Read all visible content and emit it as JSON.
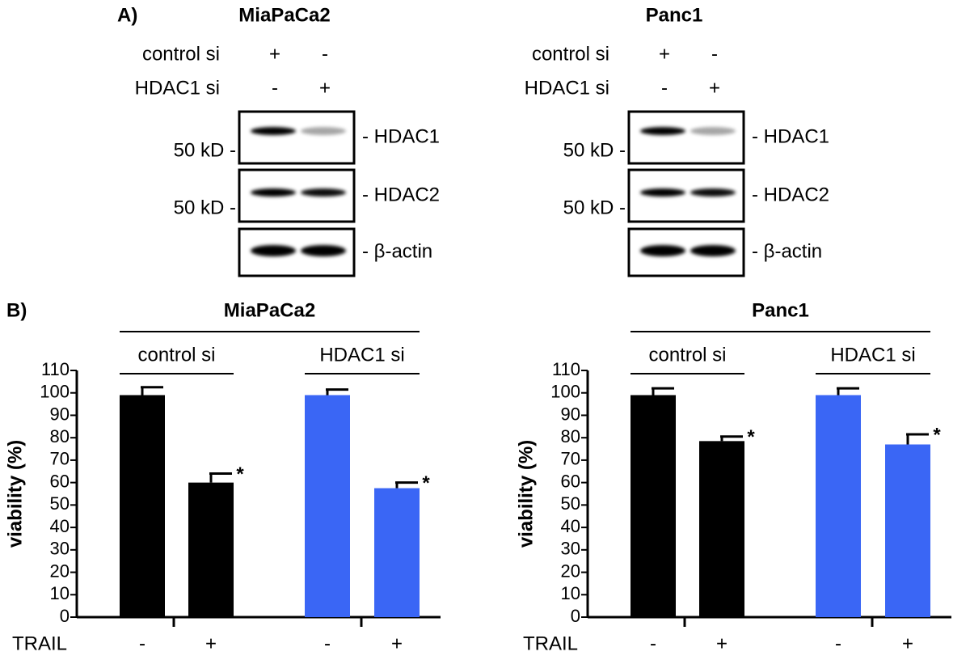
{
  "panel_labels": [
    "A)",
    "B)"
  ],
  "panel_a": {
    "blots": [
      {
        "title": "MiaPaCa2",
        "conditions": [
          {
            "name": "control si",
            "lanes": [
              "+",
              "-"
            ]
          },
          {
            "name": "HDAC1 si",
            "lanes": [
              "-",
              "+"
            ]
          }
        ],
        "bands": [
          "- HDAC1",
          "- HDAC2",
          "- β-actin"
        ],
        "markers": [
          "50 kD -",
          "50 kD -"
        ]
      },
      {
        "title": "Panc1",
        "conditions": [
          {
            "name": "control si",
            "lanes": [
              "+",
              "-"
            ]
          },
          {
            "name": "HDAC1 si",
            "lanes": [
              "-",
              "+"
            ]
          }
        ],
        "bands": [
          "- HDAC1",
          "- HDAC2",
          "- β-actin"
        ],
        "markers": [
          "50 kD -",
          "50 kD -"
        ]
      }
    ]
  },
  "chart_data": [
    {
      "type": "bar",
      "title": "MiaPaCa2",
      "groups": [
        "control si",
        "HDAC1 si"
      ],
      "x_label": "TRAIL",
      "y_label": "viability (%)",
      "categories": [
        "-",
        "+",
        "-",
        "+"
      ],
      "values": [
        99,
        60,
        99,
        57.5
      ],
      "errors": [
        3.5,
        4,
        2.5,
        2.5
      ],
      "colors": [
        "#000000",
        "#000000",
        "#3a66f5",
        "#3a66f5"
      ],
      "markers": [
        null,
        "*",
        null,
        "*"
      ],
      "ylim": [
        0,
        110
      ],
      "yticks": [
        0,
        10,
        20,
        30,
        40,
        50,
        60,
        70,
        80,
        90,
        100,
        110
      ]
    },
    {
      "type": "bar",
      "title": "Panc1",
      "groups": [
        "control si",
        "HDAC1 si"
      ],
      "x_label": "TRAIL",
      "y_label": "viability (%)",
      "categories": [
        "-",
        "+",
        "-",
        "+"
      ],
      "values": [
        99,
        78.5,
        99,
        77
      ],
      "errors": [
        3,
        2,
        3,
        4.5
      ],
      "colors": [
        "#000000",
        "#000000",
        "#3a66f5",
        "#3a66f5"
      ],
      "markers": [
        null,
        "*",
        null,
        "*"
      ],
      "ylim": [
        0,
        110
      ],
      "yticks": [
        0,
        10,
        20,
        30,
        40,
        50,
        60,
        70,
        80,
        90,
        100,
        110
      ]
    }
  ]
}
